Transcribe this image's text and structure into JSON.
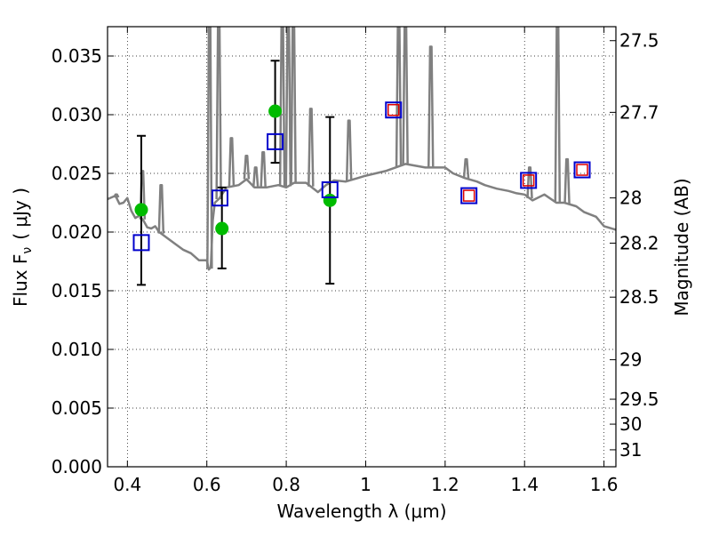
{
  "chart_data": {
    "type": "scatter",
    "xlabel": "Wavelength  λ (μm)",
    "ylabel": "Flux  F",
    "ylabel_sub": "ν",
    "ylabel_unit": "( μJy )",
    "y2label": "Magnitude (AB)",
    "xlim": [
      0.35,
      1.63
    ],
    "ylim": [
      0.0,
      0.0375
    ],
    "grid": true,
    "x_ticks": [
      0.4,
      0.6,
      0.8,
      1.0,
      1.2,
      1.4,
      1.6
    ],
    "x_tick_labels": [
      "0.4",
      "0.6",
      "0.8",
      "1",
      "1.2",
      "1.4",
      "1.6"
    ],
    "y_ticks": [
      0.0,
      0.005,
      0.01,
      0.015,
      0.02,
      0.025,
      0.03,
      0.035
    ],
    "y_tick_labels": [
      "0.000",
      "0.005",
      "0.010",
      "0.015",
      "0.020",
      "0.025",
      "0.030",
      "0.035"
    ],
    "mag_ticks": [
      {
        "mag": 27.5,
        "label": "27.5"
      },
      {
        "mag": 27.7,
        "label": "27.7"
      },
      {
        "mag": 28.0,
        "label": "28"
      },
      {
        "mag": 28.2,
        "label": "28.2"
      },
      {
        "mag": 28.5,
        "label": "28.5"
      },
      {
        "mag": 29.0,
        "label": "29"
      },
      {
        "mag": 29.5,
        "label": "29.5"
      },
      {
        "mag": 30.0,
        "label": "30"
      },
      {
        "mag": 31.0,
        "label": "31"
      }
    ],
    "series": [
      {
        "kind": "line",
        "color": "#808080",
        "x": [
          0.35,
          0.37,
          0.38,
          0.39,
          0.4,
          0.41,
          0.42,
          0.43,
          0.44,
          0.45,
          0.46,
          0.47,
          0.48,
          0.5,
          0.52,
          0.54,
          0.56,
          0.58,
          0.6,
          0.605,
          0.61,
          0.615,
          0.62,
          0.63,
          0.65,
          0.68,
          0.7,
          0.72,
          0.75,
          0.78,
          0.8,
          0.82,
          0.85,
          0.88,
          0.9,
          0.92,
          0.95,
          0.98,
          1.0,
          1.05,
          1.1,
          1.15,
          1.2,
          1.22,
          1.25,
          1.28,
          1.3,
          1.33,
          1.36,
          1.38,
          1.4,
          1.42,
          1.45,
          1.48,
          1.5,
          1.53,
          1.55,
          1.58,
          1.6,
          1.63
        ],
        "y": [
          0.0228,
          0.0231,
          0.0224,
          0.0225,
          0.0229,
          0.0218,
          0.0212,
          0.0214,
          0.021,
          0.0204,
          0.0203,
          0.0205,
          0.02,
          0.0195,
          0.019,
          0.0185,
          0.0182,
          0.0176,
          0.0176,
          0.0168,
          0.017,
          0.021,
          0.0225,
          0.0228,
          0.0238,
          0.024,
          0.0245,
          0.0238,
          0.0238,
          0.024,
          0.0238,
          0.0242,
          0.0242,
          0.0234,
          0.024,
          0.0244,
          0.0243,
          0.0246,
          0.0248,
          0.0252,
          0.0258,
          0.0255,
          0.0255,
          0.025,
          0.0246,
          0.0243,
          0.024,
          0.0237,
          0.0235,
          0.0233,
          0.0232,
          0.0227,
          0.0232,
          0.0225,
          0.0225,
          0.0222,
          0.0217,
          0.0213,
          0.0205,
          0.0202
        ]
      },
      {
        "kind": "emission_lines",
        "color": "#808080",
        "points": [
          {
            "x": 0.372,
            "y": 0.0232
          },
          {
            "x": 0.438,
            "y": 0.0252
          },
          {
            "x": 0.485,
            "y": 0.024
          },
          {
            "x": 0.607,
            "y": 0.0375
          },
          {
            "x": 0.63,
            "y": 0.0375
          },
          {
            "x": 0.662,
            "y": 0.028
          },
          {
            "x": 0.7,
            "y": 0.0265
          },
          {
            "x": 0.723,
            "y": 0.0255
          },
          {
            "x": 0.742,
            "y": 0.0268
          },
          {
            "x": 0.79,
            "y": 0.0375
          },
          {
            "x": 0.805,
            "y": 0.0375
          },
          {
            "x": 0.818,
            "y": 0.0375
          },
          {
            "x": 0.862,
            "y": 0.0305
          },
          {
            "x": 0.958,
            "y": 0.0295
          },
          {
            "x": 1.083,
            "y": 0.0375
          },
          {
            "x": 1.1,
            "y": 0.0375
          },
          {
            "x": 1.164,
            "y": 0.0358
          },
          {
            "x": 1.253,
            "y": 0.0262
          },
          {
            "x": 1.413,
            "y": 0.0255
          },
          {
            "x": 1.483,
            "y": 0.0375
          },
          {
            "x": 1.507,
            "y": 0.0262
          }
        ]
      },
      {
        "kind": "markers",
        "marker": "circle",
        "color": "#00bb00",
        "x": [
          0.435,
          0.638,
          0.772,
          0.91
        ],
        "y": [
          0.0219,
          0.0203,
          0.0303,
          0.0227
        ],
        "err_low": [
          0.0155,
          0.0169,
          0.0259,
          0.0156
        ],
        "err_high": [
          0.0282,
          0.0238,
          0.0346,
          0.0298
        ]
      },
      {
        "kind": "markers",
        "marker": "square",
        "color": "#0000cc",
        "x": [
          0.435,
          0.633,
          0.772,
          0.91,
          1.07,
          1.26,
          1.41,
          1.545
        ],
        "y": [
          0.0191,
          0.0229,
          0.0277,
          0.0236,
          0.0304,
          0.0231,
          0.0244,
          0.0253
        ]
      },
      {
        "kind": "markers",
        "marker": "square-small",
        "color": "#dd0000",
        "x": [
          1.07,
          1.26,
          1.41,
          1.545
        ],
        "y": [
          0.0304,
          0.0231,
          0.0244,
          0.0253
        ]
      }
    ]
  }
}
